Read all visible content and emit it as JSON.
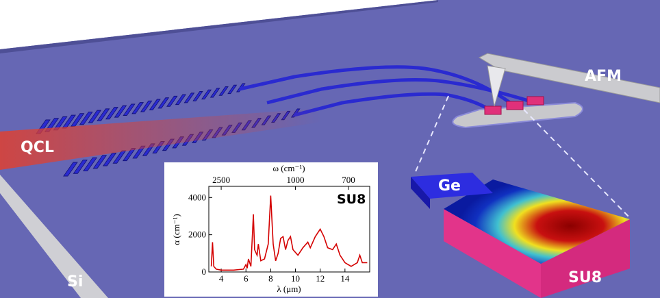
{
  "labels": {
    "qcl": "QCL",
    "afm": "AFM",
    "ge": "Ge",
    "su8": "SU8",
    "si": "Si"
  },
  "chart_data": {
    "type": "line",
    "label": "SU8",
    "xlabel": "λ (μm)",
    "ylabel": "α (cm⁻¹)",
    "x2label": "ω (cm⁻¹)",
    "x": [
      3.2,
      3.3,
      3.4,
      3.6,
      4,
      5,
      5.8,
      6,
      6.1,
      6.2,
      6.4,
      6.6,
      6.7,
      6.9,
      7.0,
      7.2,
      7.5,
      7.8,
      8.0,
      8.2,
      8.4,
      8.6,
      8.8,
      9.0,
      9.2,
      9.4,
      9.6,
      9.8,
      10.2,
      10.6,
      11.0,
      11.2,
      11.6,
      12.0,
      12.3,
      12.6,
      13.0,
      13.3,
      13.6,
      14.0,
      14.5,
      15.0,
      15.2,
      15.4,
      15.8
    ],
    "series": [
      {
        "color": "#d40000",
        "values": [
          300,
          1600,
          300,
          150,
          100,
          100,
          150,
          400,
          200,
          700,
          300,
          3100,
          1200,
          900,
          1500,
          600,
          700,
          1500,
          4100,
          1500,
          600,
          1000,
          1800,
          1900,
          1200,
          1700,
          1900,
          1200,
          900,
          1300,
          1600,
          1300,
          1900,
          2300,
          1900,
          1300,
          1200,
          1500,
          900,
          500,
          300,
          500,
          900,
          500,
          500
        ]
      }
    ],
    "xlim": [
      3,
      16
    ],
    "ylim": [
      0,
      4600
    ],
    "xticks": [
      4,
      6,
      8,
      10,
      12,
      14
    ],
    "yticks": [
      0,
      2000,
      4000
    ],
    "x2ticks": [
      2500,
      1000,
      700
    ]
  }
}
